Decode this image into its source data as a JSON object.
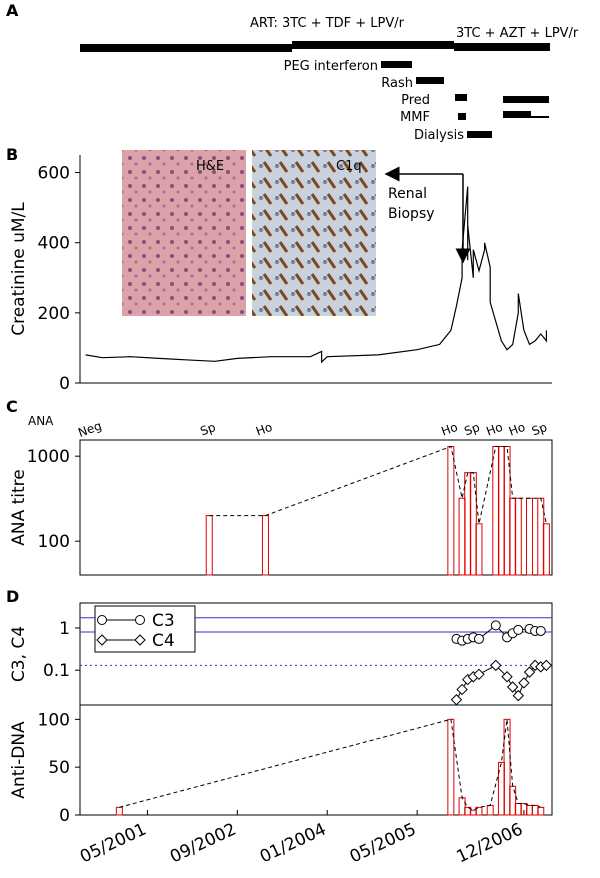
{
  "panel_labels": [
    "A",
    "B",
    "C",
    "D"
  ],
  "timeline": {
    "regimens": [
      "ART: 3TC + TDF + LPV/r",
      "3TC + AZT + LPV/r"
    ],
    "treatments": [
      "PEG interferon",
      "Rash",
      "Pred",
      "MMF",
      "Dialysis"
    ]
  },
  "chart_data": [
    {
      "type": "line",
      "ylabel": "Creatinine uM/L",
      "color": "#000000",
      "image_labels": [
        "H&E",
        "C1q"
      ],
      "annotation": "Renal Biopsy",
      "xlim": [
        "2000-05",
        "2007-05"
      ],
      "ylim": [
        0,
        650
      ],
      "yticks": [
        0,
        200,
        400,
        600
      ],
      "x": [
        "2000-06",
        "2000-09",
        "2001-02",
        "2001-07",
        "2002-01",
        "2002-05",
        "2002-09",
        "2003-03",
        "2003-10",
        "2003-12",
        "2003-12",
        "2004-01",
        "2004-10",
        "2005-05",
        "2005-09",
        "2005-11",
        "2005-12",
        "2006-01",
        "2006-01",
        "2006-02",
        "2006-02",
        "2006-02",
        "2006-03",
        "2006-03",
        "2006-04",
        "2006-05",
        "2006-05",
        "2006-06",
        "2006-06",
        "2006-08",
        "2006-09",
        "2006-10",
        "2006-11",
        "2006-11",
        "2006-12",
        "2007-01",
        "2007-02",
        "2007-03",
        "2007-04",
        "2007-04"
      ],
      "values": [
        80,
        72,
        75,
        70,
        65,
        62,
        70,
        75,
        75,
        90,
        60,
        75,
        80,
        95,
        110,
        150,
        220,
        300,
        380,
        560,
        350,
        450,
        300,
        380,
        320,
        380,
        400,
        330,
        230,
        120,
        95,
        110,
        200,
        255,
        150,
        110,
        120,
        140,
        120,
        150
      ]
    },
    {
      "type": "bar",
      "ylabel": "ANA titre",
      "log": true,
      "color": "#e00000",
      "results_header": "ANA",
      "xlim": [
        "2000-05",
        "2007-05"
      ],
      "ylim": [
        40,
        1550
      ],
      "yticks": [
        100,
        1000
      ],
      "x": [
        "2002-04",
        "2003-02",
        "2005-11",
        "2006-01",
        "2006-02",
        "2006-03",
        "2006-04",
        "2006-07",
        "2006-08",
        "2006-09",
        "2006-10",
        "2006-11",
        "2007-01",
        "2007-03",
        "2007-04"
      ],
      "values": [
        200,
        200,
        1300,
        320,
        640,
        640,
        160,
        1300,
        1300,
        1300,
        320,
        320,
        320,
        320,
        160
      ],
      "result_labels": [
        {
          "x": "2000-07",
          "label": "Neg"
        },
        {
          "x": "2002-04",
          "label": "Sp"
        },
        {
          "x": "2003-02",
          "label": "Ho"
        },
        {
          "x": "2005-11",
          "label": "Ho"
        },
        {
          "x": "2006-03",
          "label": "Sp"
        },
        {
          "x": "2006-07",
          "label": "Ho"
        },
        {
          "x": "2006-11",
          "label": "Ho"
        },
        {
          "x": "2007-03",
          "label": "Sp"
        }
      ]
    },
    {
      "type": "line",
      "ylabel": "C3, C4",
      "log": true,
      "legend": "upper left",
      "xlim": [
        "2000-05",
        "2007-05"
      ],
      "ylim": [
        0.015,
        3.9
      ],
      "yticks": [
        1,
        0.1
      ],
      "reference_lines": [
        {
          "value": 1.75,
          "color": "#3333cc",
          "style": "solid"
        },
        {
          "value": 0.8,
          "color": "#3333cc",
          "style": "solid"
        },
        {
          "value": 0.13,
          "color": "#3333cc",
          "style": "dotted"
        }
      ],
      "series": [
        {
          "name": "C3",
          "marker": "circle",
          "color": "#000000",
          "x": [
            "2005-12",
            "2006-01",
            "2006-02",
            "2006-03",
            "2006-04",
            "2006-07",
            "2006-09",
            "2006-10",
            "2006-11",
            "2007-01",
            "2007-02",
            "2007-03"
          ],
          "values": [
            0.55,
            0.5,
            0.55,
            0.6,
            0.55,
            1.15,
            0.6,
            0.75,
            0.9,
            0.95,
            0.85,
            0.85
          ]
        },
        {
          "name": "C4",
          "marker": "diamond",
          "color": "#000000",
          "x": [
            "2005-12",
            "2006-01",
            "2006-02",
            "2006-03",
            "2006-04",
            "2006-07",
            "2006-09",
            "2006-10",
            "2006-11",
            "2006-12",
            "2007-01",
            "2007-02",
            "2007-03",
            "2007-04"
          ],
          "values": [
            0.02,
            0.035,
            0.06,
            0.07,
            0.08,
            0.13,
            0.07,
            0.04,
            0.025,
            0.05,
            0.09,
            0.13,
            0.12,
            0.13
          ]
        }
      ]
    },
    {
      "type": "bar",
      "ylabel": "Anti-DNA",
      "color": "#e00000",
      "xlim": [
        "2000-05",
        "2007-05"
      ],
      "ylim": [
        0,
        115
      ],
      "yticks": [
        0,
        50,
        100
      ],
      "xticks": [
        {
          "value": "2001-05",
          "label": "05/2001"
        },
        {
          "value": "2002-09",
          "label": "09/2002"
        },
        {
          "value": "2004-01",
          "label": "01/2004"
        },
        {
          "value": "2005-05",
          "label": "05/2005"
        },
        {
          "value": "2006-12",
          "label": "12/2006"
        }
      ],
      "x": [
        "2000-12",
        "2005-11",
        "2006-01",
        "2006-02",
        "2006-03",
        "2006-04",
        "2006-06",
        "2006-08",
        "2006-09",
        "2006-10",
        "2006-11",
        "2006-12",
        "2007-01",
        "2007-02",
        "2007-03"
      ],
      "values": [
        8,
        100,
        18,
        8,
        5,
        8,
        10,
        55,
        100,
        30,
        12,
        12,
        10,
        10,
        8
      ]
    }
  ]
}
